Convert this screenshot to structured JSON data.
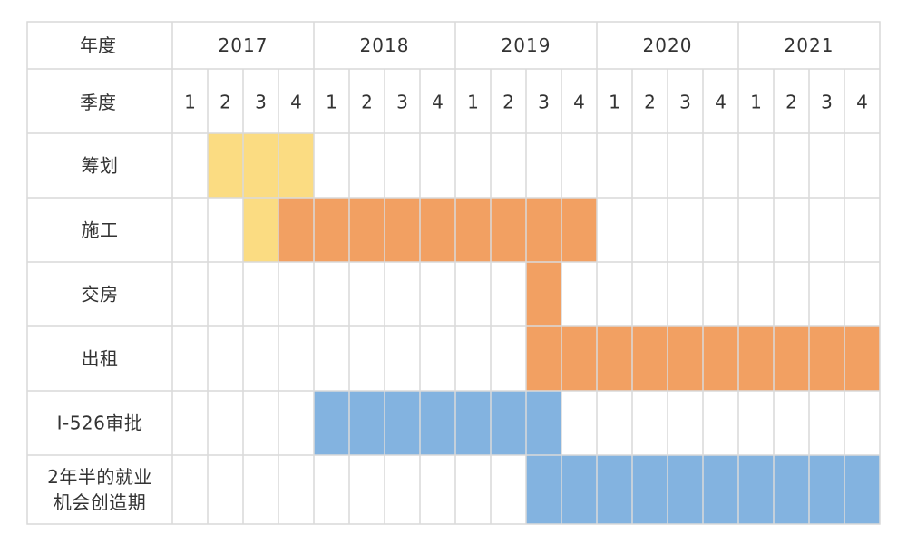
{
  "header": {
    "year_label": "年度",
    "quarter_label": "季度"
  },
  "chart_data": {
    "type": "table",
    "years": [
      "2017",
      "2018",
      "2019",
      "2020",
      "2021"
    ],
    "quarters": [
      "1",
      "2",
      "3",
      "4"
    ],
    "colors": {
      "yellow": "#fbdc82",
      "orange": "#f2a062",
      "blue": "#83b3e0",
      "grid": "#d9d9d9",
      "background": "#ffffff"
    },
    "rows": [
      {
        "lines": [
          "筹划"
        ],
        "spans": [
          {
            "start": "2017Q2",
            "end": "2017Q4",
            "color": "yellow"
          }
        ]
      },
      {
        "lines": [
          "施工"
        ],
        "spans": [
          {
            "start": "2017Q3",
            "end": "2017Q3",
            "color": "yellow"
          },
          {
            "start": "2017Q4",
            "end": "2019Q4",
            "color": "orange"
          }
        ]
      },
      {
        "lines": [
          "交房"
        ],
        "spans": [
          {
            "start": "2019Q3",
            "end": "2019Q3",
            "color": "orange"
          }
        ]
      },
      {
        "lines": [
          "出租"
        ],
        "spans": [
          {
            "start": "2019Q3",
            "end": "2021Q4",
            "color": "orange"
          }
        ]
      },
      {
        "lines": [
          "I-526审批"
        ],
        "spans": [
          {
            "start": "2018Q1",
            "end": "2019Q3",
            "color": "blue"
          }
        ]
      },
      {
        "lines": [
          "2年半的就业",
          "机会创造期"
        ],
        "spans": [
          {
            "start": "2019Q3",
            "end": "2021Q4",
            "color": "blue"
          }
        ]
      }
    ]
  }
}
